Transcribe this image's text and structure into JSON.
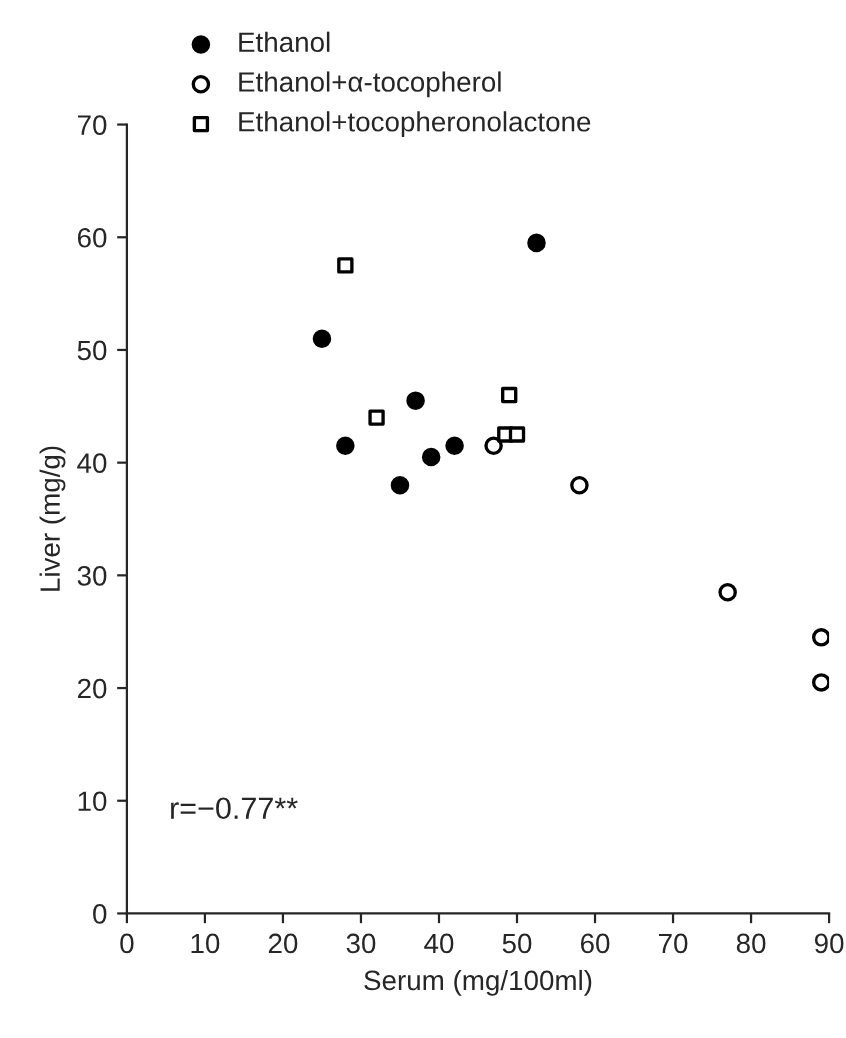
{
  "chart_data": {
    "type": "scatter",
    "xlabel": "Serum (mg/100ml)",
    "ylabel": "Liver (mg/g)",
    "xlim": [
      0,
      90
    ],
    "xticks": [
      0,
      10,
      20,
      30,
      40,
      50,
      60,
      70,
      80,
      90
    ],
    "ylim": [
      0,
      70
    ],
    "yticks": [
      0,
      10,
      20,
      30,
      40,
      50,
      60,
      70
    ],
    "grid": false,
    "legend": "top left",
    "annotations": [
      "r=−0.77**"
    ],
    "series": [
      {
        "name": "Ethanol",
        "color": "#000000",
        "marker": "circle",
        "x": [
          25,
          28,
          35,
          37,
          39,
          42,
          52.5
        ],
        "values": [
          51,
          41.5,
          38,
          45.5,
          40.5,
          41.5,
          59.5
        ]
      },
      {
        "name": "Ethanol+α-tocopherol",
        "color": "#000000",
        "marker": "circle",
        "x": [
          47,
          58,
          77,
          89,
          89
        ],
        "values": [
          41.5,
          38,
          28.5,
          24.5,
          20.5
        ]
      },
      {
        "name": "Ethanol+tocopheronolactone",
        "color": "#000000",
        "marker": "square",
        "x": [
          28,
          32,
          49,
          48.5,
          50
        ],
        "values": [
          57.5,
          44,
          46,
          42.5,
          42.5
        ]
      }
    ]
  }
}
